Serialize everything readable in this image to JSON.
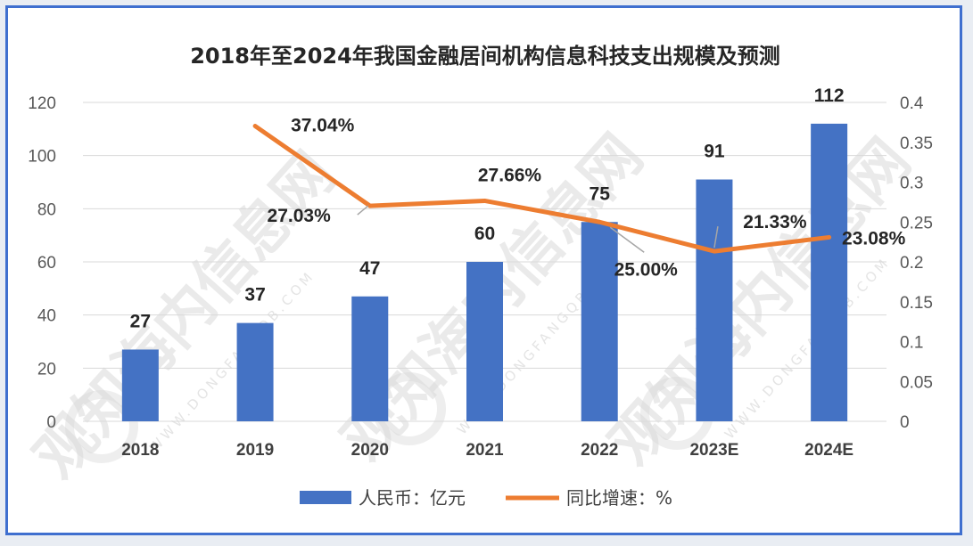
{
  "chart_data": {
    "type": "bar",
    "title": "2018年至2024年我国金融居间机构信息科技支出规模及预测",
    "categories": [
      "2018",
      "2019",
      "2020",
      "2021",
      "2022",
      "2023E",
      "2024E"
    ],
    "series": [
      {
        "name": "人民币：亿元",
        "type": "bar",
        "axis": "left",
        "color": "#4472c4",
        "values": [
          27,
          37,
          47,
          60,
          75,
          91,
          112
        ],
        "labels": [
          "27",
          "37",
          "47",
          "60",
          "75",
          "91",
          "112"
        ]
      },
      {
        "name": "同比增速：%",
        "type": "line",
        "axis": "right",
        "color": "#ed7d31",
        "values": [
          null,
          0.3704,
          0.2703,
          0.2766,
          0.25,
          0.2133,
          0.2308
        ],
        "labels": [
          "",
          "37.04%",
          "27.03%",
          "27.66%",
          "25.00%",
          "21.33%",
          "23.08%"
        ]
      }
    ],
    "y_left": {
      "min": 0,
      "max": 120,
      "ticks": [
        "0",
        "20",
        "40",
        "60",
        "80",
        "100",
        "120"
      ]
    },
    "y_right": {
      "min": 0,
      "max": 0.4,
      "ticks": [
        "0",
        "0.05",
        "0.1",
        "0.15",
        "0.2",
        "0.25",
        "0.3",
        "0.35",
        "0.4"
      ]
    },
    "grid": true,
    "legend_position": "bottom"
  },
  "watermark": {
    "text": "观知海内信息网",
    "url_text": "WWW.DONGFANGQB.COM"
  }
}
